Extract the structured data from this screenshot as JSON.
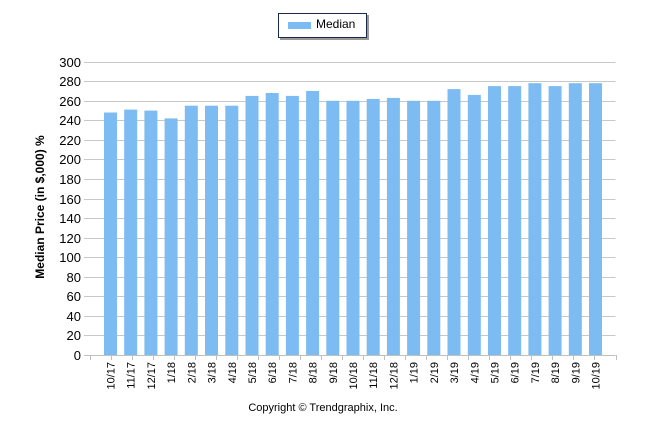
{
  "legend": {
    "label": "Median",
    "color": "#7dbbf3"
  },
  "axis": {
    "y_title": "Median Price (in $,000) %"
  },
  "footer": {
    "copyright": "Copyright © Trendgraphix, Inc."
  },
  "colors": {
    "bar": "#7dbbf3",
    "grid": "#c8c8c8",
    "axis": "#c0c0c0",
    "text": "#000000"
  },
  "chart_data": {
    "type": "bar",
    "title": "",
    "xlabel": "",
    "ylabel": "Median Price (in $,000) %",
    "ylim": [
      0,
      300
    ],
    "yticks": [
      0,
      20,
      40,
      60,
      80,
      100,
      120,
      140,
      160,
      180,
      200,
      220,
      240,
      260,
      280,
      300
    ],
    "grid": true,
    "legend_position": "top-center",
    "categories": [
      "10/17",
      "11/17",
      "12/17",
      "1/18",
      "2/18",
      "3/18",
      "4/18",
      "5/18",
      "6/18",
      "7/18",
      "8/18",
      "9/18",
      "10/18",
      "11/18",
      "12/18",
      "1/19",
      "2/19",
      "3/19",
      "4/19",
      "5/19",
      "6/19",
      "7/19",
      "8/19",
      "9/19",
      "10/19"
    ],
    "series": [
      {
        "name": "Median",
        "values": [
          248,
          251,
          250,
          242,
          255,
          255,
          255,
          265,
          268,
          265,
          270,
          260,
          260,
          262,
          263,
          260,
          260,
          272,
          266,
          275,
          275,
          278,
          275,
          278,
          278
        ]
      }
    ]
  }
}
